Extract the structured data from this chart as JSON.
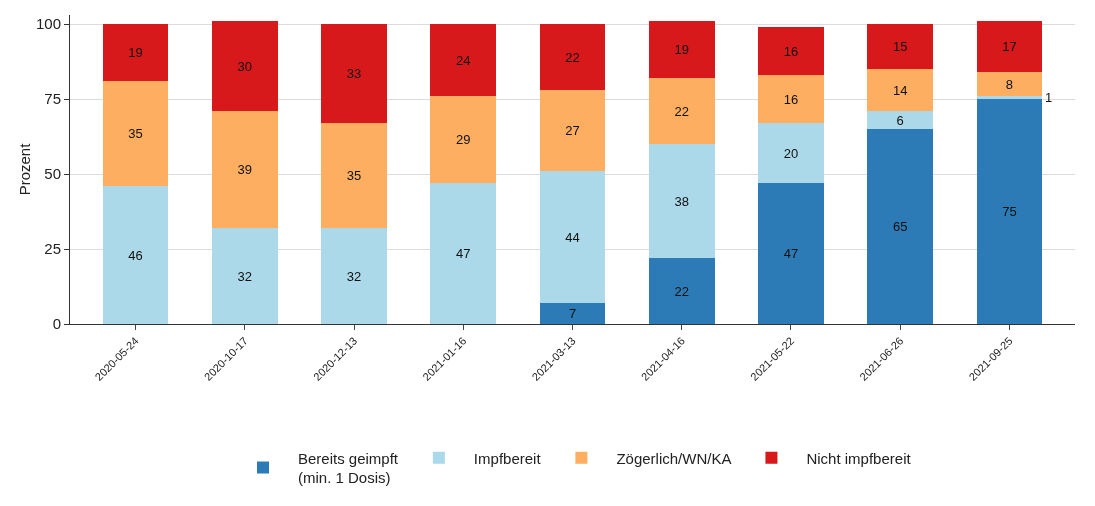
{
  "chart_data": {
    "type": "bar",
    "stacked": true,
    "ylabel": "Prozent",
    "categories": [
      "2020-05-24",
      "2020-10-17",
      "2020-12-13",
      "2021-01-16",
      "2021-03-13",
      "2021-04-16",
      "2021-05-22",
      "2021-06-26",
      "2021-09-25"
    ],
    "series": [
      {
        "name": "Bereits geimpft\n(min. 1 Dosis)",
        "color": "#2c7bb6",
        "values": [
          null,
          null,
          null,
          null,
          7,
          22,
          47,
          65,
          75
        ]
      },
      {
        "name": "Impfbereit",
        "color": "#abd9e9",
        "values": [
          46,
          32,
          32,
          47,
          44,
          38,
          20,
          6,
          1
        ]
      },
      {
        "name": "Zögerlich/WN/KA",
        "color": "#fdae61",
        "values": [
          35,
          39,
          35,
          29,
          27,
          22,
          16,
          14,
          8
        ]
      },
      {
        "name": "Nicht impfbereit",
        "color": "#d7191c",
        "values": [
          19,
          30,
          33,
          24,
          22,
          19,
          16,
          15,
          17
        ]
      }
    ],
    "ylim": [
      0,
      103
    ],
    "yticks": [
      0,
      25,
      50,
      75,
      100
    ],
    "grid": "y",
    "legend": "bottom",
    "data_labels": true
  }
}
